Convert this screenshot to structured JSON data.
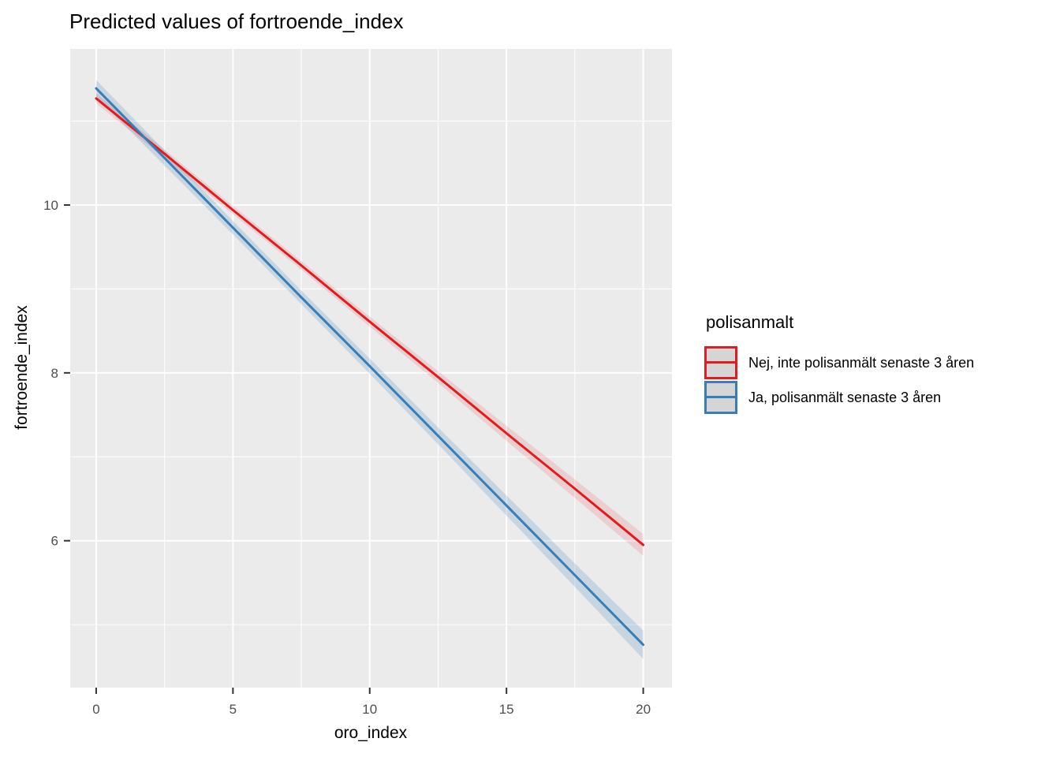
{
  "title": "Predicted values of fortroende_index",
  "axes": {
    "x_title": "oro_index",
    "y_title": "fortroende_index"
  },
  "legend": {
    "title": "polisanmalt",
    "position": "right"
  },
  "colors": {
    "panel_bg": "#ebebeb",
    "grid_major": "#ffffff",
    "grid_minor": "#ffffff",
    "tick_mark": "#333333",
    "tick_label": "#4d4d4d",
    "title_text": "#000000",
    "red_line": "#e41a1c",
    "blue_line": "#377eb8",
    "red_ribbon": "rgba(228,26,28,0.13)",
    "blue_ribbon": "rgba(55,126,184,0.20)",
    "legend_key_fill": "#d5d5d5"
  },
  "chart_data": {
    "type": "line",
    "title": "Predicted values of fortroende_index",
    "xlabel": "oro_index",
    "ylabel": "fortroende_index",
    "legend_title": "polisanmalt",
    "legend_position": "right",
    "grid": true,
    "x_domain": [
      -0.95,
      21.05
    ],
    "y_domain": [
      4.25,
      11.86
    ],
    "x_ticks": [
      0,
      5,
      10,
      15,
      20
    ],
    "y_ticks": [
      6,
      8,
      10
    ],
    "x_minor_ticks": [
      2.5,
      7.5,
      12.5,
      17.5
    ],
    "y_minor_ticks": [
      5,
      7,
      9,
      11
    ],
    "x": [
      0,
      2.5,
      5,
      7.5,
      10,
      12.5,
      15,
      17.5,
      20
    ],
    "series": [
      {
        "name": "Nej, inte polisanmält senaste 3 åren",
        "color": "#e41a1c",
        "ribbon_color": "rgba(228,26,28,0.13)",
        "values": [
          11.27,
          10.61,
          9.94,
          9.28,
          8.61,
          7.95,
          7.28,
          6.62,
          5.95
        ],
        "ci_upper": [
          11.33,
          10.66,
          9.99,
          9.33,
          8.67,
          8.02,
          7.37,
          6.73,
          6.08
        ],
        "ci_lower": [
          11.21,
          10.56,
          9.89,
          9.23,
          8.55,
          7.88,
          7.19,
          6.51,
          5.82
        ]
      },
      {
        "name": "Ja, polisanmält senaste 3 åren",
        "color": "#377eb8",
        "ribbon_color": "rgba(55,126,184,0.20)",
        "values": [
          11.39,
          10.56,
          9.73,
          8.9,
          8.08,
          7.25,
          6.42,
          5.59,
          4.76
        ],
        "ci_upper": [
          11.49,
          10.65,
          9.81,
          8.98,
          8.17,
          7.35,
          6.54,
          5.73,
          4.93
        ],
        "ci_lower": [
          11.29,
          10.47,
          9.65,
          8.82,
          7.99,
          7.15,
          6.3,
          5.45,
          4.59
        ]
      }
    ]
  }
}
